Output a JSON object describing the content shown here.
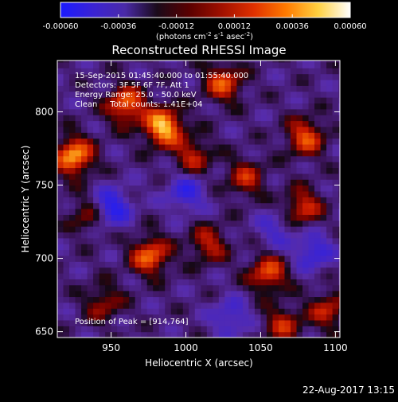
{
  "colorbar": {
    "ticks": [
      "-0.00060",
      "-0.00036",
      "-0.00012",
      "0.00012",
      "0.00036",
      "0.00060"
    ],
    "units_parts": [
      "(photons cm",
      "-2",
      " s",
      "-1",
      " asec",
      "-2",
      ")"
    ],
    "stops": [
      "#1a1aff",
      "#3a23d4",
      "#4a2aa8",
      "#1a0a1a",
      "#5a0000",
      "#a01000",
      "#e03000",
      "#ff7a00",
      "#ffd040",
      "#ffffff"
    ]
  },
  "plot": {
    "title": "Reconstructed RHESSI Image",
    "annotations": [
      "15-Sep-2015 01:45:40.000 to 01:55:40.000",
      "Detectors: 3F 5F 6F 7F, Att 1",
      "Energy Range: 25.0 - 50.0 keV",
      "Clean     Total counts: 1.41E+04"
    ],
    "peak_label": "Position of Peak = [914,764]"
  },
  "footer": {
    "timestamp": "22-Aug-2017 13:15"
  },
  "chart_data": {
    "type": "heatmap",
    "title": "Reconstructed RHESSI Image",
    "xlabel": "Heliocentric X (arcsec)",
    "ylabel": "Heliocentric Y (arcsec)",
    "xlim": [
      914,
      1103
    ],
    "ylim": [
      646,
      835
    ],
    "x_ticks": [
      950,
      1000,
      1050,
      1100
    ],
    "y_ticks": [
      650,
      700,
      750,
      800
    ],
    "colorbar_range": [
      -0.0006,
      0.0006
    ],
    "peak": [
      914,
      764
    ],
    "cell_size_arcsec": 4,
    "hotspots": [
      {
        "x": 985,
        "y": 790,
        "value": 0.0006
      },
      {
        "x": 925,
        "y": 770,
        "value": 0.00055
      },
      {
        "x": 960,
        "y": 805,
        "value": 0.00045
      },
      {
        "x": 1025,
        "y": 820,
        "value": 0.0004
      },
      {
        "x": 1080,
        "y": 783,
        "value": 0.0004
      },
      {
        "x": 1005,
        "y": 770,
        "value": 0.0003
      },
      {
        "x": 976,
        "y": 702,
        "value": 0.00045
      },
      {
        "x": 1055,
        "y": 690,
        "value": 0.0004
      },
      {
        "x": 1078,
        "y": 735,
        "value": 0.00035
      },
      {
        "x": 1040,
        "y": 755,
        "value": 0.0003
      },
      {
        "x": 1015,
        "y": 710,
        "value": 0.0003
      },
      {
        "x": 945,
        "y": 670,
        "value": 0.00025
      },
      {
        "x": 1095,
        "y": 665,
        "value": 0.0003
      },
      {
        "x": 1065,
        "y": 655,
        "value": 0.0003
      },
      {
        "x": 935,
        "y": 730,
        "value": 0.00025
      }
    ],
    "coldspots": [
      {
        "x": 950,
        "y": 735,
        "value": -0.0004
      },
      {
        "x": 1085,
        "y": 705,
        "value": -0.0003
      },
      {
        "x": 1000,
        "y": 745,
        "value": -0.0003
      },
      {
        "x": 1030,
        "y": 660,
        "value": -0.00025
      },
      {
        "x": 1060,
        "y": 720,
        "value": -0.0002
      }
    ]
  }
}
